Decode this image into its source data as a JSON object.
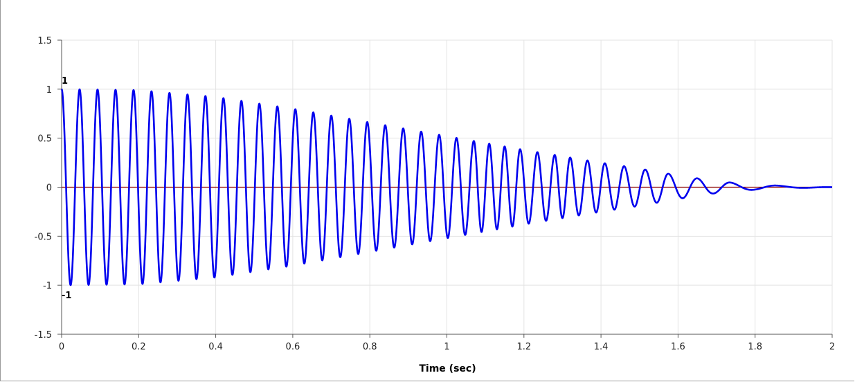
{
  "chart_data": {
    "type": "line",
    "title": "",
    "xlabel": "Time (sec)",
    "ylabel": "",
    "xlim": [
      0,
      2
    ],
    "ylim": [
      -1.5,
      1.5
    ],
    "grid": true,
    "legend": "none",
    "x_ticks": [
      0,
      0.2,
      0.4,
      0.6,
      0.8,
      1,
      1.2,
      1.4,
      1.6,
      1.8,
      2
    ],
    "x_tick_labels": [
      "0",
      "0.2",
      "0.4",
      "0.6",
      "0.8",
      "1",
      "1.2",
      "1.4",
      "1.6",
      "1.8",
      "2"
    ],
    "y_ticks": [
      1.5,
      1,
      0.5,
      0,
      -0.5,
      -1,
      -1.5
    ],
    "y_tick_labels": [
      "1.5",
      "1",
      "0.5",
      "0",
      "-0.5",
      "-1",
      "-1.5"
    ],
    "annotations": [
      {
        "text": "1",
        "x": 0,
        "y": 1
      },
      {
        "text": "-1",
        "x": 0,
        "y": -1
      }
    ],
    "series": [
      {
        "color": "#0000ee",
        "description": "decaying oscillation with decreasing frequency",
        "envelope": [
          [
            0,
            1.0
          ],
          [
            0.2,
            0.99
          ],
          [
            0.4,
            0.92
          ],
          [
            0.6,
            0.8
          ],
          [
            0.8,
            0.66
          ],
          [
            1.0,
            0.52
          ],
          [
            1.2,
            0.38
          ],
          [
            1.4,
            0.25
          ],
          [
            1.5,
            0.19
          ],
          [
            1.6,
            0.12
          ],
          [
            1.7,
            0.06
          ],
          [
            1.8,
            0.025
          ],
          [
            1.9,
            0.01
          ],
          [
            2.0,
            0.0
          ]
        ],
        "peak_times": [
          0,
          0.0467,
          0.0933,
          0.14,
          0.1867,
          0.2333,
          0.28,
          0.3267,
          0.3733,
          0.42,
          0.4667,
          0.5133,
          0.56,
          0.6067,
          0.6533,
          0.7,
          0.7467,
          0.7933,
          0.84,
          0.8867,
          0.9333,
          0.98,
          1.025,
          1.07,
          1.11,
          1.15,
          1.19,
          1.235,
          1.28,
          1.32,
          1.365,
          1.41,
          1.46,
          1.515,
          1.575,
          1.65,
          1.735,
          1.855
        ]
      },
      {
        "color": "#8b0000",
        "description": "zero reference line",
        "x": [
          0,
          2
        ],
        "values": [
          0,
          0
        ]
      }
    ]
  }
}
